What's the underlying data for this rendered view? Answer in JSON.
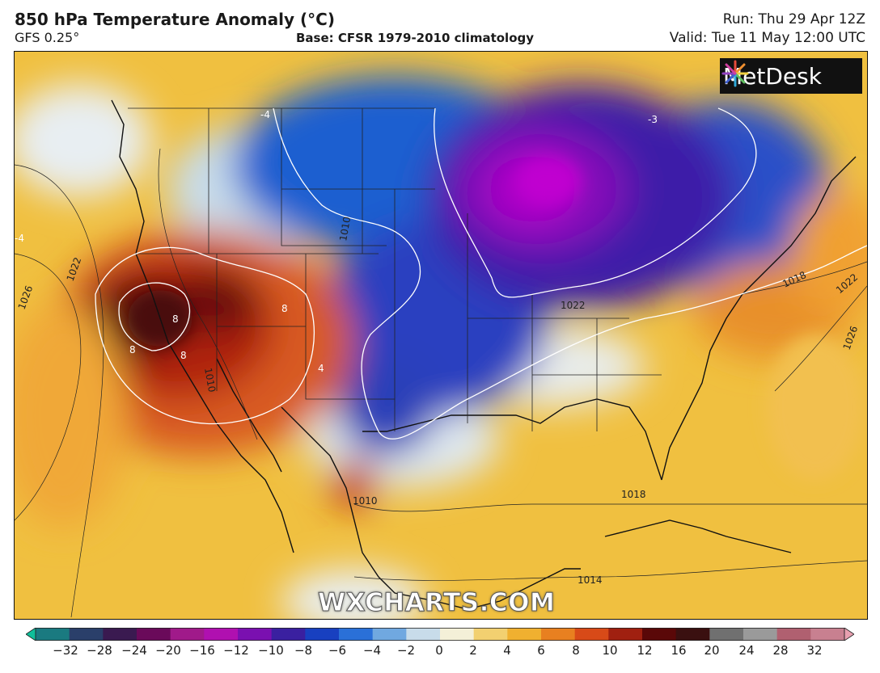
{
  "header": {
    "title": "850 hPa Temperature Anomaly (°C)",
    "model": "GFS 0.25°",
    "base": "Base: CFSR 1979-2010 climatology",
    "run": "Run: Thu 29 Apr 12Z",
    "valid": "Valid: Tue 11 May 12:00 UTC"
  },
  "logo": {
    "text": "MetDesk",
    "icon": "starburst-logo-icon"
  },
  "watermark": "WXCHARTS.COM",
  "map": {
    "contour_labels": [
      "-4",
      "-3",
      "-4",
      "8",
      "8",
      "8",
      "8",
      "4",
      "1010",
      "1022",
      "1026",
      "1022",
      "1018",
      "1022",
      "1026",
      "1018",
      "1014",
      "1010",
      "1010"
    ],
    "colors": {
      "cold_extreme": "#a000c8",
      "cold": "#3c1ea8",
      "cool": "#1f5fd0",
      "near_zero": "#e8eef2",
      "warm": "#f0b830",
      "hot": "#d64418",
      "very_hot": "#5a0a0a"
    }
  },
  "colorbar": {
    "ticks": [
      "−32",
      "−28",
      "−24",
      "−20",
      "−16",
      "−12",
      "−10",
      "−8",
      "−6",
      "−4",
      "−2",
      "0",
      "2",
      "4",
      "6",
      "8",
      "10",
      "12",
      "16",
      "20",
      "24",
      "28",
      "32"
    ],
    "colors": [
      "#0fbf9a",
      "#1a7a80",
      "#2a3f6a",
      "#3a1a50",
      "#6a0a5a",
      "#a01a8a",
      "#b010b0",
      "#7a10b0",
      "#3a20a0",
      "#1840c0",
      "#2a70d8",
      "#70a8e0",
      "#c8dcea",
      "#f4f0d8",
      "#f2d070",
      "#f0b030",
      "#e88020",
      "#d84a18",
      "#a02010",
      "#5a0808",
      "#3a1010",
      "#707070",
      "#9a9a9a",
      "#b06070",
      "#c88090",
      "#e8a0b0"
    ]
  }
}
